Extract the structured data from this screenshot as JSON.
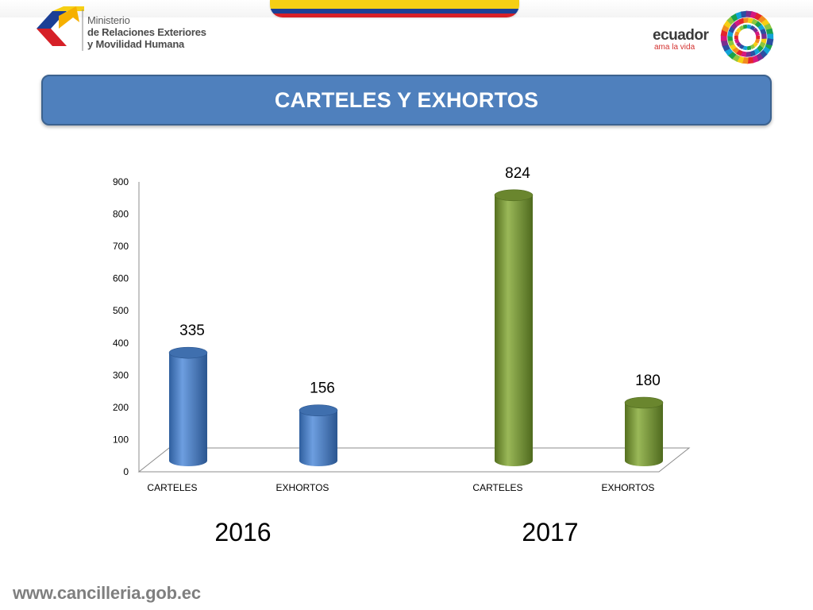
{
  "header": {
    "ministry_line1": "Ministerio",
    "ministry_line2": "de Relaciones Exteriores",
    "ministry_line3": "y Movilidad Humana",
    "ecuador_word": "ecuador",
    "ecuador_tagline": "ama la vida",
    "flag_colors": [
      "#f6cf14",
      "#1b3f95",
      "#d62027"
    ]
  },
  "title": "CARTELES Y EXHORTOS",
  "chart_data": {
    "type": "bar",
    "style": "3d-cylinder",
    "ylim": [
      0,
      900
    ],
    "yticks": [
      0,
      100,
      200,
      300,
      400,
      500,
      600,
      700,
      800,
      900
    ],
    "grid": false,
    "groups": [
      {
        "label": "2016",
        "color": "#4a7fc1",
        "bars": [
          {
            "category": "CARTELES",
            "value": 335
          },
          {
            "category": "EXHORTOS",
            "value": 156
          }
        ]
      },
      {
        "label": "2017",
        "color": "#77963b",
        "bars": [
          {
            "category": "CARTELES",
            "value": 824
          },
          {
            "category": "EXHORTOS",
            "value": 180
          }
        ]
      }
    ]
  },
  "footer": {
    "url": "www.cancilleria.gob.ec"
  }
}
